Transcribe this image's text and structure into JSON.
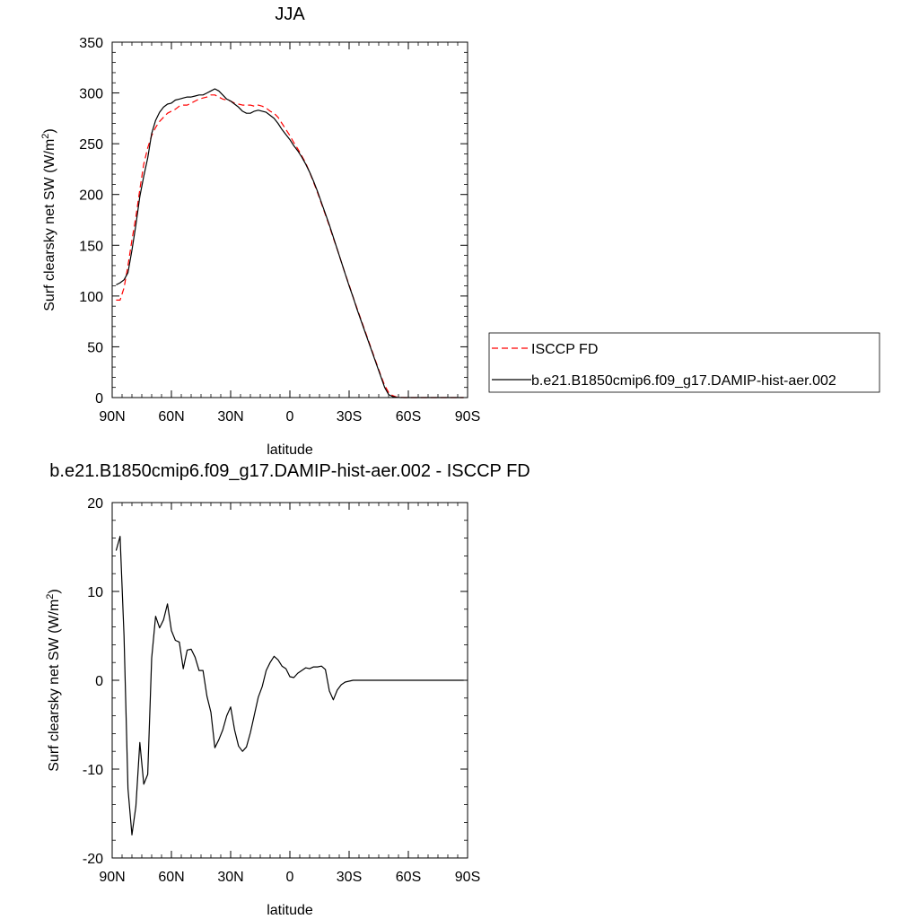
{
  "chart_data": [
    {
      "type": "line",
      "title": "JJA",
      "xlabel": "latitude",
      "ylabel": "Surf clearsky net SW (W/m²)",
      "ylabel_main": "Surf clearsky net SW (W/m",
      "ylabel_sup": "2",
      "ylabel_end": ")",
      "xlim": [
        90,
        -90
      ],
      "ylim": [
        0,
        350
      ],
      "xticks": [
        {
          "value": 90,
          "label": "90N"
        },
        {
          "value": 60,
          "label": "60N"
        },
        {
          "value": 30,
          "label": "30N"
        },
        {
          "value": 0,
          "label": "0"
        },
        {
          "value": -30,
          "label": "30S"
        },
        {
          "value": -60,
          "label": "60S"
        },
        {
          "value": -90,
          "label": "90S"
        }
      ],
      "yticks": [
        0,
        50,
        100,
        150,
        200,
        250,
        300,
        350
      ],
      "grid": false,
      "legend_placement": "right",
      "series": [
        {
          "name": "ISCCP FD",
          "color": "#ff0000",
          "dash": "dashed",
          "x": [
            88,
            86,
            84,
            82,
            80,
            78,
            76,
            74,
            72,
            70,
            68,
            66,
            64,
            62,
            60,
            58,
            56,
            54,
            52,
            50,
            48,
            46,
            44,
            42,
            40,
            38,
            36,
            34,
            32,
            30,
            28,
            26,
            24,
            22,
            20,
            18,
            16,
            14,
            12,
            10,
            8,
            6,
            4,
            2,
            0,
            -2,
            -4,
            -6,
            -8,
            -10,
            -12,
            -14,
            -16,
            -18,
            -20,
            -22,
            -24,
            -26,
            -28,
            -30,
            -32,
            -34,
            -36,
            -38,
            -40,
            -42,
            -44,
            -46,
            -48,
            -50,
            -52,
            -54,
            -56,
            -58,
            -60,
            -62,
            -64,
            -66,
            -68,
            -70,
            -72,
            -74,
            -76,
            -78,
            -80,
            -82,
            -84,
            -86,
            -88
          ],
          "values": [
            96,
            96,
            108,
            130,
            155,
            178,
            205,
            230,
            246,
            258,
            266,
            272,
            276,
            280,
            282,
            284,
            287,
            288,
            288,
            290,
            292,
            294,
            295,
            296,
            298,
            298,
            296,
            294,
            293,
            292,
            290,
            289,
            288,
            288,
            288,
            287,
            288,
            287,
            285,
            282,
            280,
            276,
            270,
            264,
            258,
            251,
            245,
            238,
            231,
            222,
            212,
            202,
            191,
            180,
            169,
            157,
            146,
            134,
            122,
            111,
            99,
            88,
            77,
            66,
            55,
            44,
            33,
            22,
            12,
            5,
            2,
            0.5,
            0.2,
            0,
            0,
            0,
            0,
            0,
            0,
            0,
            0,
            0,
            0,
            0,
            0,
            0,
            0,
            0,
            0
          ]
        },
        {
          "name": "b.e21.B1850cmip6.f09_g17.DAMIP-hist-aer.002",
          "color": "#000000",
          "dash": "solid",
          "x": [
            88,
            86,
            84,
            82,
            80,
            78,
            76,
            74,
            72,
            70,
            68,
            66,
            64,
            62,
            60,
            58,
            56,
            54,
            52,
            50,
            48,
            46,
            44,
            42,
            40,
            38,
            36,
            34,
            32,
            30,
            28,
            26,
            24,
            22,
            20,
            18,
            16,
            14,
            12,
            10,
            8,
            6,
            4,
            2,
            0,
            -2,
            -4,
            -6,
            -8,
            -10,
            -12,
            -14,
            -16,
            -18,
            -20,
            -22,
            -24,
            -26,
            -28,
            -30,
            -32,
            -34,
            -36,
            -38,
            -40,
            -42,
            -44,
            -46,
            -48,
            -50,
            -52,
            -54,
            -56,
            -58,
            -60,
            -62,
            -64,
            -66,
            -68,
            -70,
            -72,
            -74,
            -76,
            -78,
            -80,
            -82,
            -84,
            -86,
            -88
          ],
          "values": [
            111,
            113,
            116,
            123,
            145,
            170,
            198,
            218,
            236,
            260,
            273,
            281,
            286,
            289,
            290,
            293,
            294,
            295,
            296,
            296,
            297,
            298,
            298,
            300,
            302,
            304,
            302,
            298,
            294,
            292,
            289,
            286,
            282,
            280,
            280,
            282,
            283,
            282,
            281,
            278,
            275,
            270,
            264,
            259,
            254,
            248,
            243,
            237,
            230,
            222,
            213,
            203,
            192,
            181,
            170,
            158,
            146,
            134,
            122,
            110,
            99,
            87,
            76,
            65,
            54,
            43,
            32,
            21,
            10,
            3,
            1,
            0.3,
            0,
            0,
            0,
            0,
            0,
            0,
            0,
            0,
            0,
            0,
            0,
            0,
            0,
            0,
            0,
            0,
            0
          ]
        }
      ]
    },
    {
      "type": "line",
      "title": "b.e21.B1850cmip6.f09_g17.DAMIP-hist-aer.002 - ISCCP FD",
      "xlabel": "latitude",
      "ylabel": "Surf clearsky net SW (W/m²)",
      "ylabel_main": "Surf clearsky net SW (W/m",
      "ylabel_sup": "2",
      "ylabel_end": ")",
      "xlim": [
        90,
        -90
      ],
      "ylim": [
        -20,
        20
      ],
      "xticks": [
        {
          "value": 90,
          "label": "90N"
        },
        {
          "value": 60,
          "label": "60N"
        },
        {
          "value": 30,
          "label": "30N"
        },
        {
          "value": 0,
          "label": "0"
        },
        {
          "value": -30,
          "label": "30S"
        },
        {
          "value": -60,
          "label": "60S"
        },
        {
          "value": -90,
          "label": "90S"
        }
      ],
      "yticks": [
        -20,
        -10,
        0,
        10,
        20
      ],
      "grid": false,
      "series": [
        {
          "name": "",
          "color": "#000000",
          "dash": "solid",
          "x": [
            88,
            86,
            84,
            82,
            80,
            78,
            76,
            74,
            72,
            70,
            68,
            66,
            64,
            62,
            60,
            58,
            56,
            54,
            52,
            50,
            48,
            46,
            44,
            42,
            40,
            38,
            36,
            34,
            32,
            30,
            28,
            26,
            24,
            22,
            20,
            18,
            16,
            14,
            12,
            10,
            8,
            6,
            4,
            2,
            0,
            -2,
            -4,
            -6,
            -8,
            -10,
            -12,
            -14,
            -16,
            -18,
            -20,
            -22,
            -24,
            -26,
            -28,
            -30,
            -32,
            -34,
            -36,
            -38,
            -40,
            -42,
            -44,
            -46,
            -48,
            -50,
            -52,
            -54,
            -56,
            -58,
            -60,
            -62,
            -64,
            -66,
            -68,
            -70,
            -72,
            -74,
            -76,
            -78,
            -80,
            -82,
            -84,
            -86,
            -88
          ],
          "values": [
            14.6,
            16.2,
            5,
            -12.2,
            -17.4,
            -14.2,
            -7,
            -11.7,
            -10.6,
            2.5,
            7.2,
            5.9,
            6.8,
            8.6,
            5.6,
            4.5,
            4.3,
            1.3,
            3.4,
            3.5,
            2.6,
            1.1,
            1.1,
            -1.8,
            -3.6,
            -7.6,
            -6.7,
            -5.6,
            -4,
            -3,
            -5.6,
            -7.4,
            -8,
            -7.5,
            -5.9,
            -3.9,
            -1.9,
            -0.7,
            1.1,
            2,
            2.7,
            2.3,
            1.6,
            1.3,
            0.4,
            0.3,
            0.8,
            1.1,
            1.4,
            1.3,
            1.5,
            1.5,
            1.6,
            1.2,
            -1.2,
            -2.2,
            -1.1,
            -0.5,
            -0.2,
            -0.1,
            0,
            0,
            0,
            0,
            0,
            0,
            0,
            0,
            0,
            0,
            0,
            0,
            0,
            0,
            0,
            0,
            0,
            0,
            0,
            0,
            0,
            0,
            0,
            0,
            0,
            0,
            0,
            0,
            0
          ]
        }
      ]
    }
  ]
}
